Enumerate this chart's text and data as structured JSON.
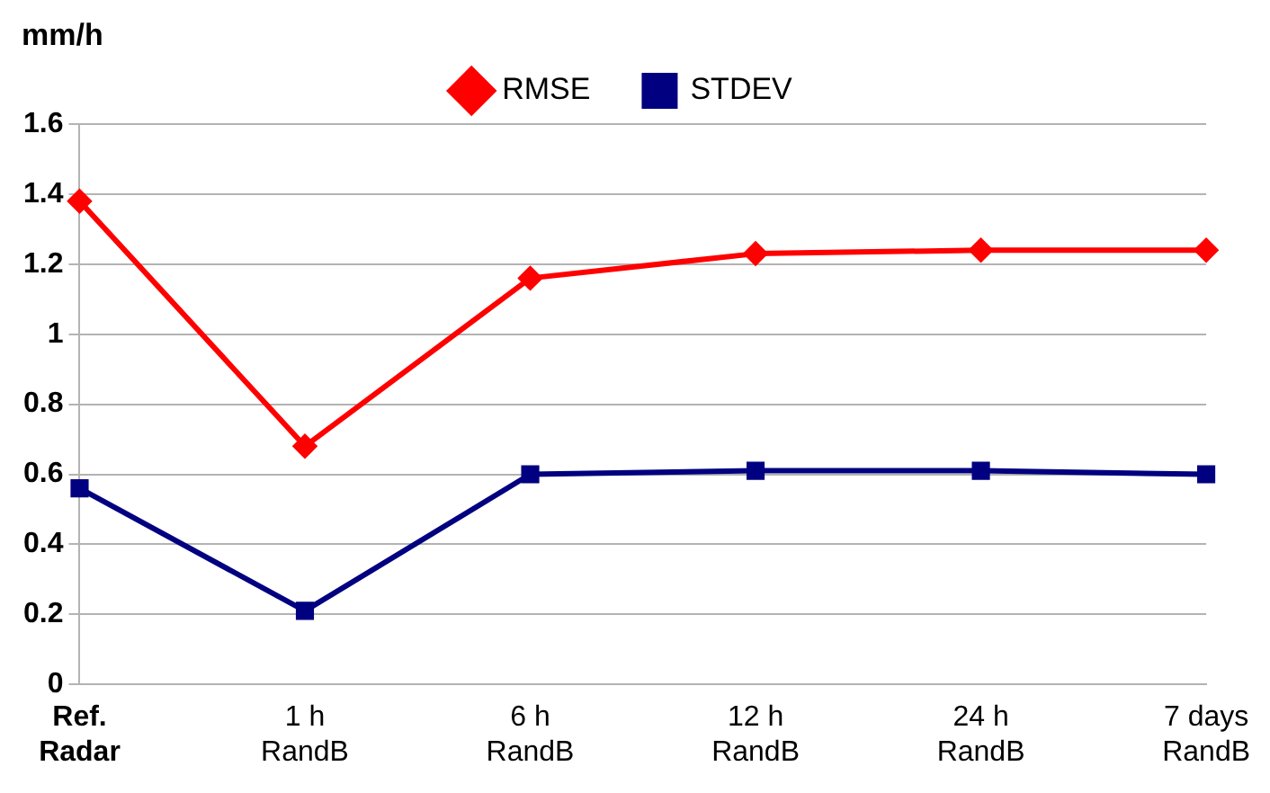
{
  "chart_data": {
    "type": "line",
    "ylabel": "mm/h",
    "categories": [
      "Ref. Radar",
      "1 h RandB",
      "6 h RandB",
      "12 h RandB",
      "24 h RandB",
      "7 days RandB"
    ],
    "series": [
      {
        "name": "RMSE",
        "color": "#ff0000",
        "marker": "diamond",
        "values": [
          1.38,
          0.68,
          1.16,
          1.23,
          1.24,
          1.24
        ]
      },
      {
        "name": "STDEV",
        "color": "#000080",
        "marker": "square",
        "values": [
          0.56,
          0.21,
          0.6,
          0.61,
          0.61,
          0.6
        ]
      }
    ],
    "ylim": [
      0,
      1.6
    ],
    "yticks": [
      0,
      0.2,
      0.4,
      0.6,
      0.8,
      1,
      1.2,
      1.4,
      1.6
    ],
    "grid": "y",
    "legend": "top",
    "line_style": "solid"
  }
}
